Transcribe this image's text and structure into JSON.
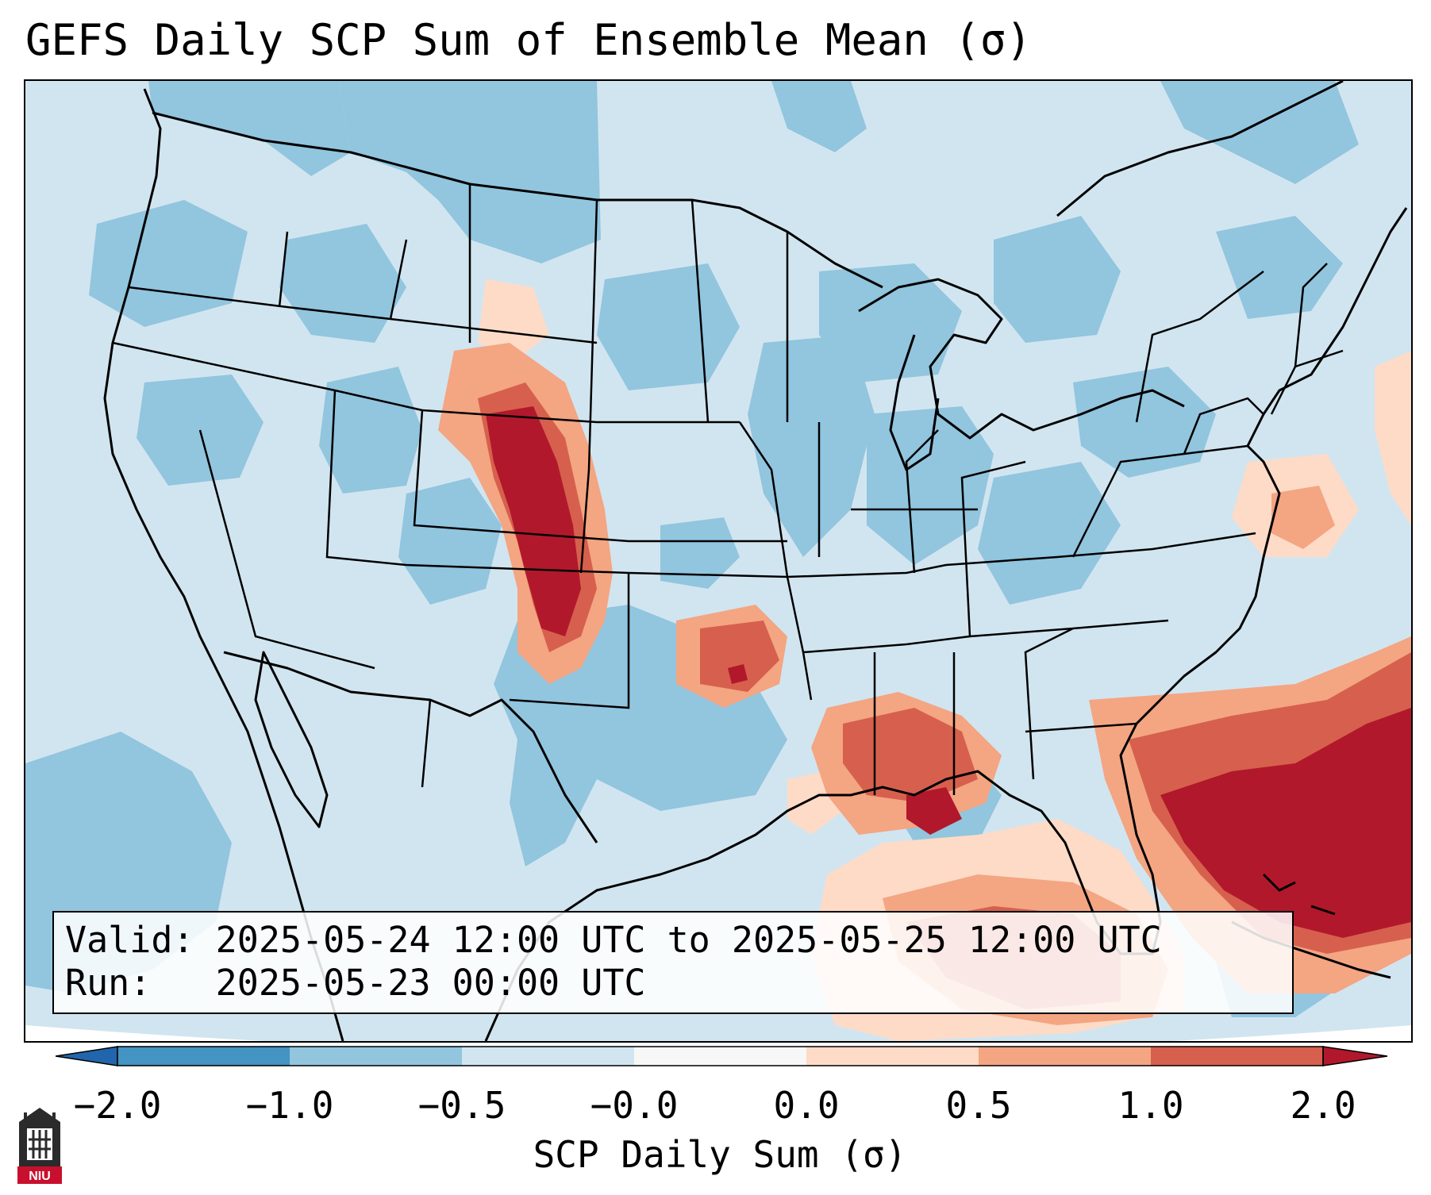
{
  "title": "GEFS Daily SCP Sum of Ensemble Mean (σ)",
  "info": {
    "valid_label": "Valid:",
    "valid_value": "2025-05-24 12:00 UTC to 2025-05-25 12:00 UTC",
    "run_label": "Run:",
    "run_value": "2025-05-23 00:00 UTC"
  },
  "colorbar": {
    "label": "SCP Daily Sum (σ)",
    "ticks": [
      "−2.0",
      "−1.0",
      "−0.5",
      "−0.0",
      "0.0",
      "0.5",
      "1.0",
      "2.0"
    ],
    "colors": [
      "#4393c3",
      "#92c5de",
      "#d1e5f0",
      "#f7f7f7",
      "#fddbc7",
      "#f4a582",
      "#d6604d"
    ],
    "under_color": "#2166ac",
    "over_color": "#b2182b"
  },
  "logo": {
    "text": "NIU",
    "icon": "university-logo-icon"
  },
  "field_colors": {
    "lt_neg1": "#92c5de",
    "neg05_0": "#d1e5f0",
    "zero_05": "#fddbc7",
    "05_1": "#f4a582",
    "1_2": "#d6604d",
    "gt_2": "#b2182b"
  }
}
